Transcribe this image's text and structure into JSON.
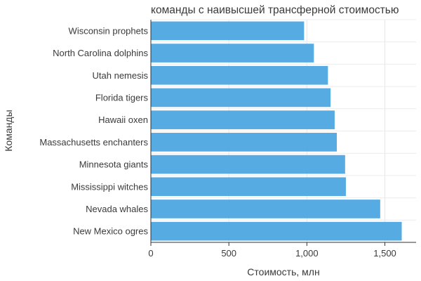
{
  "chart_data": {
    "type": "bar",
    "orientation": "horizontal",
    "title": "команды с наивысшей трансферной стоимостью",
    "xlabel": "Стоимость, млн",
    "ylabel": "Команды",
    "categories": [
      "Wisconsin prophets",
      "North Carolina dolphins",
      "Utah nemesis",
      "Florida tigers",
      "Hawaii oxen",
      "Massachusetts enchanters",
      "Minnesota giants",
      "Mississippi witches",
      "Nevada whales",
      "New Mexico ogres"
    ],
    "values": [
      982,
      1045,
      1135,
      1152,
      1178,
      1192,
      1245,
      1250,
      1470,
      1608
    ],
    "xlim": [
      0,
      1700
    ],
    "xticks": [
      0,
      500,
      1000,
      1500
    ],
    "xtick_labels": [
      "0",
      "500",
      "1,000",
      "1,500"
    ],
    "grid": true,
    "bar_color": "#4da6e2"
  }
}
